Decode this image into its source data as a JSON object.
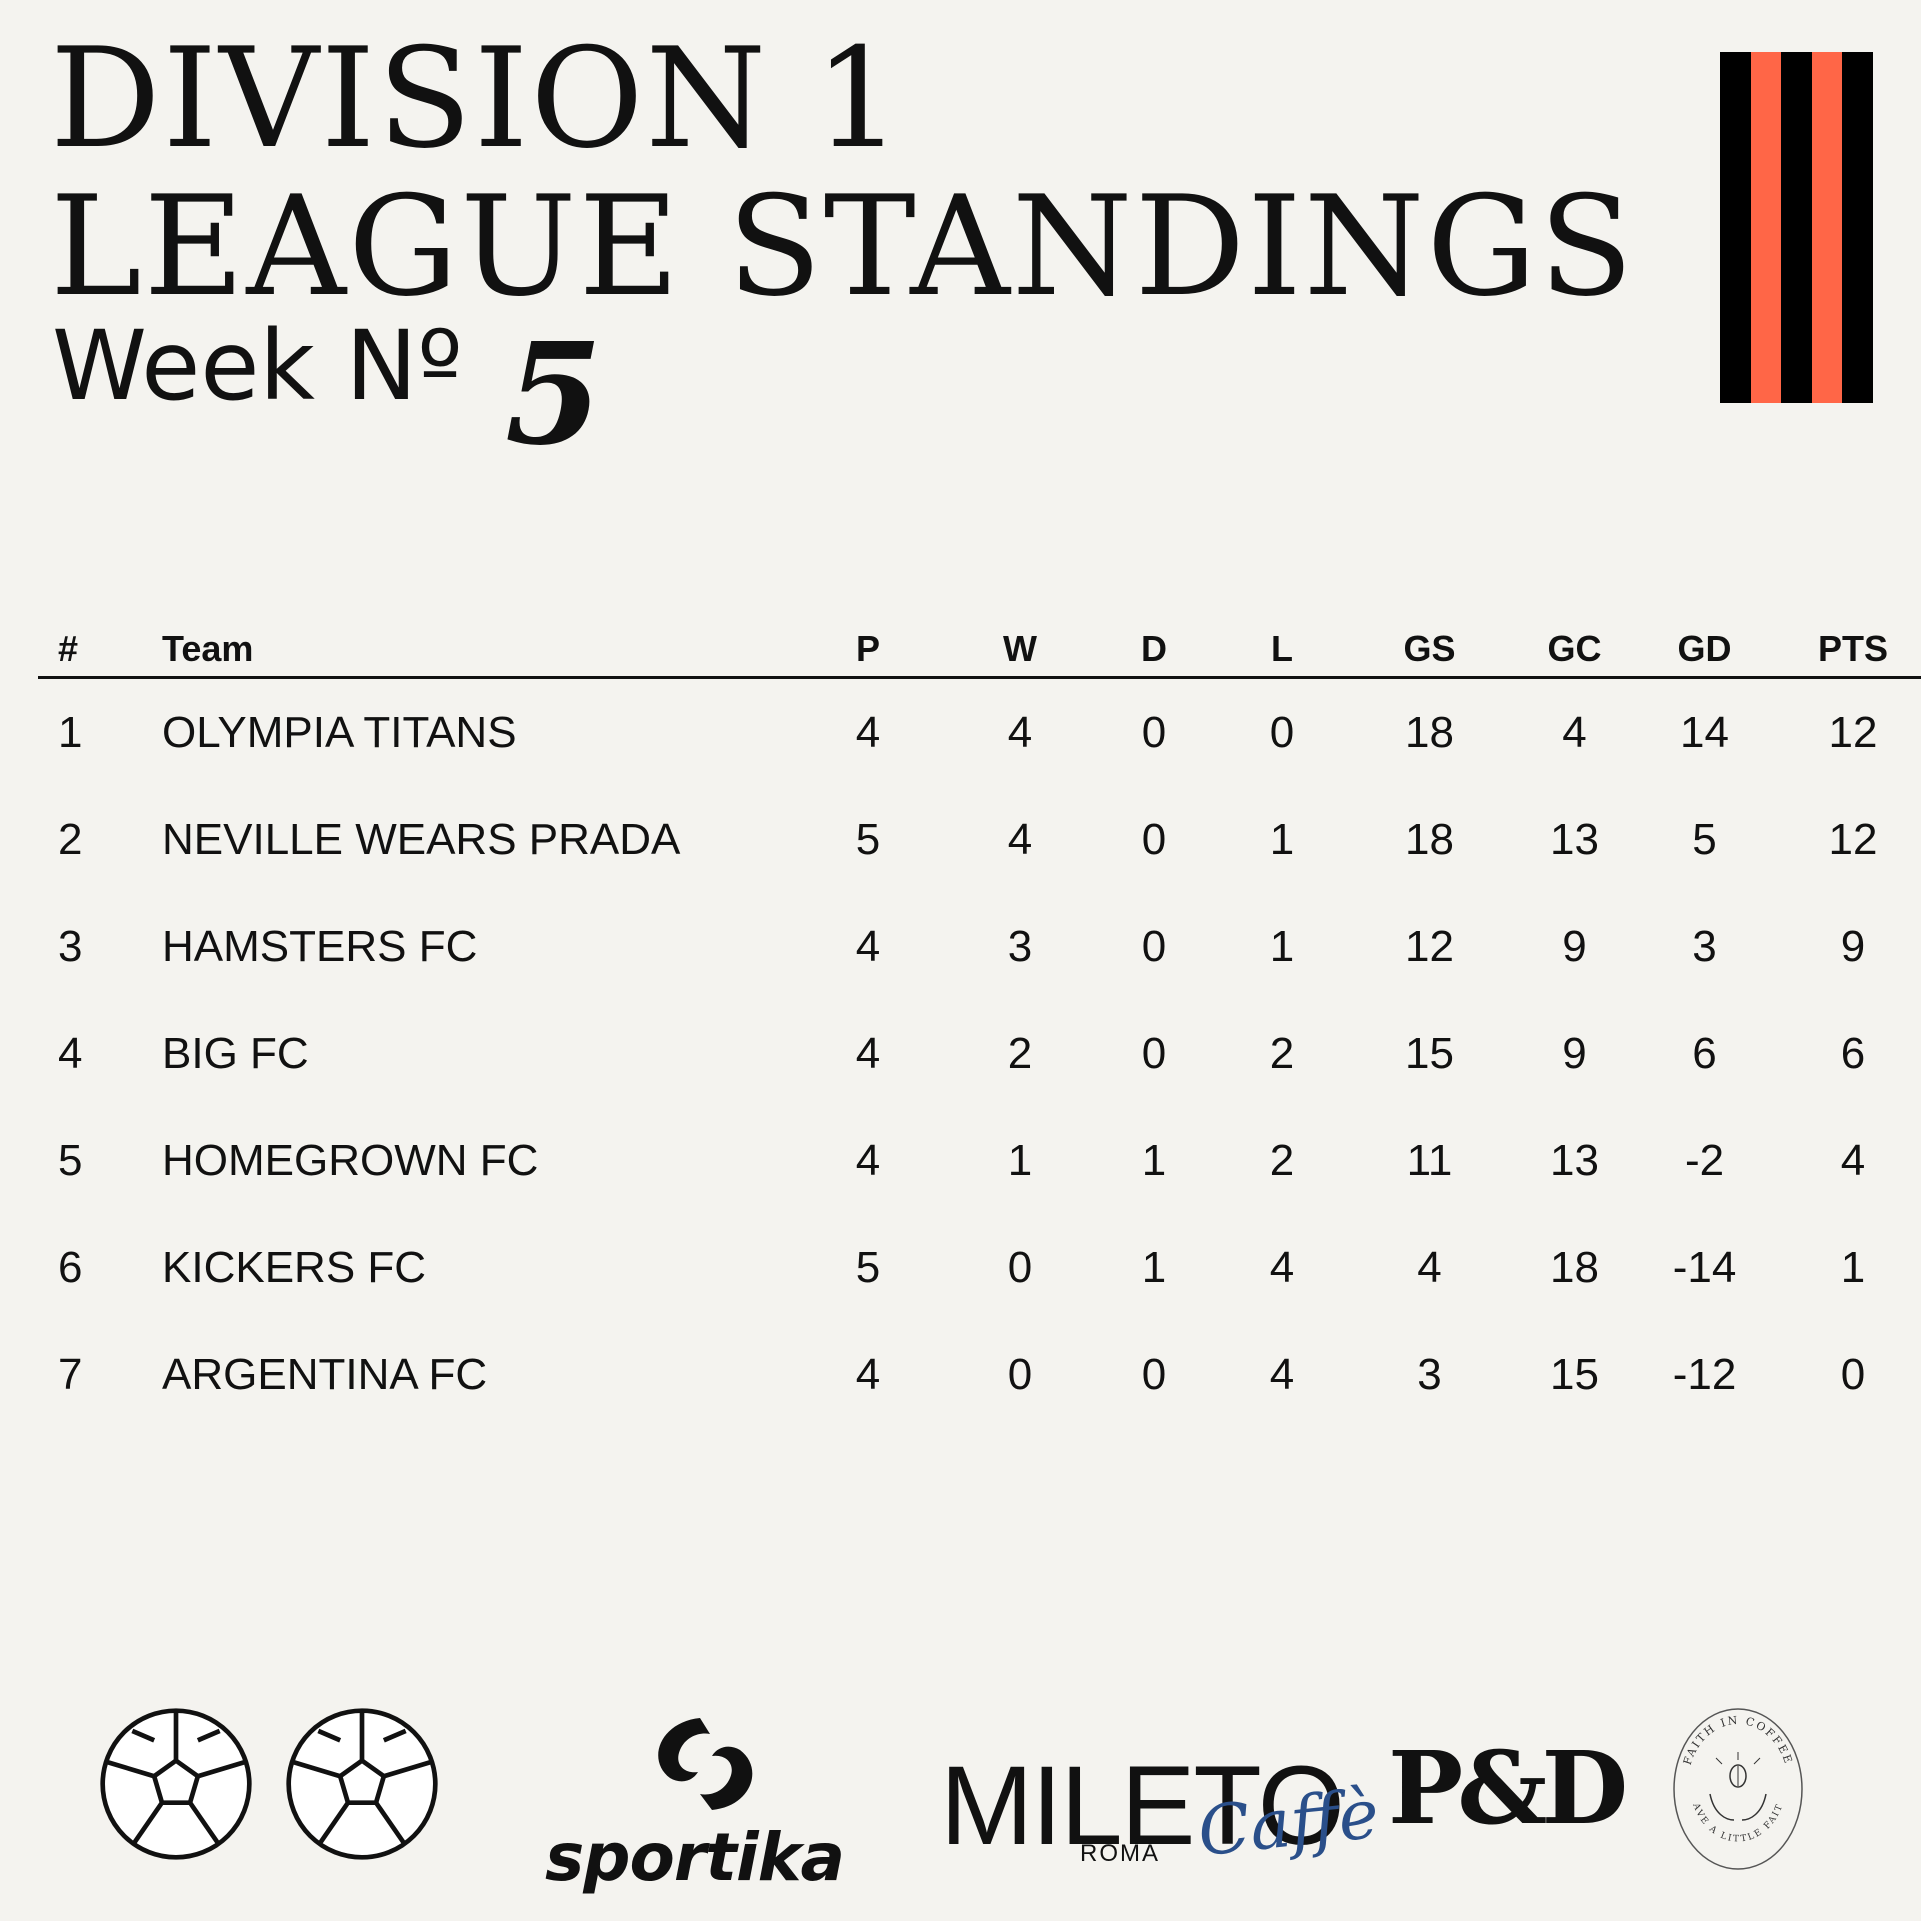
{
  "header": {
    "title_line1": "DIVISION 1",
    "title_line2": "LEAGUE STANDINGS",
    "week_label": "Week Nº",
    "week_number": "5"
  },
  "colors": {
    "background": "#f4f3ef",
    "text": "#111111",
    "stripe_dark": "#000000",
    "stripe_accent": "#ff6647",
    "caffe_blue": "#2a4f8a"
  },
  "table": {
    "headers": [
      "#",
      "Team",
      "P",
      "W",
      "D",
      "L",
      "GS",
      "GC",
      "GD",
      "PTS"
    ],
    "rows": [
      [
        "1",
        "OLYMPIA TITANS",
        "4",
        "4",
        "0",
        "0",
        "18",
        "4",
        "14",
        "12"
      ],
      [
        "2",
        "NEVILLE WEARS PRADA",
        "5",
        "4",
        "0",
        "1",
        "18",
        "13",
        "5",
        "12"
      ],
      [
        "3",
        "HAMSTERS FC",
        "4",
        "3",
        "0",
        "1",
        "12",
        "9",
        "3",
        "9"
      ],
      [
        "4",
        "BIG FC",
        "4",
        "2",
        "0",
        "2",
        "15",
        "9",
        "6",
        "6"
      ],
      [
        "5",
        "HOMEGROWN FC",
        "4",
        "1",
        "1",
        "2",
        "11",
        "13",
        "-2",
        "4"
      ],
      [
        "6",
        "KICKERS FC",
        "5",
        "0",
        "1",
        "4",
        "4",
        "18",
        "-14",
        "1"
      ],
      [
        "7",
        "ARGENTINA FC",
        "4",
        "0",
        "0",
        "4",
        "3",
        "15",
        "-12",
        "0"
      ]
    ]
  },
  "sponsors": {
    "icons": [
      "soccer-ball-icon",
      "soccer-ball-icon"
    ],
    "sportika": "sportika",
    "mileto": "MILETO",
    "mileto_sub": "ROMA",
    "mileto_script": "Caffè",
    "pd": "P&D",
    "faith_top": "FAITH IN COFFEE",
    "faith_bottom": "HAVE A LITTLE FAITH"
  }
}
